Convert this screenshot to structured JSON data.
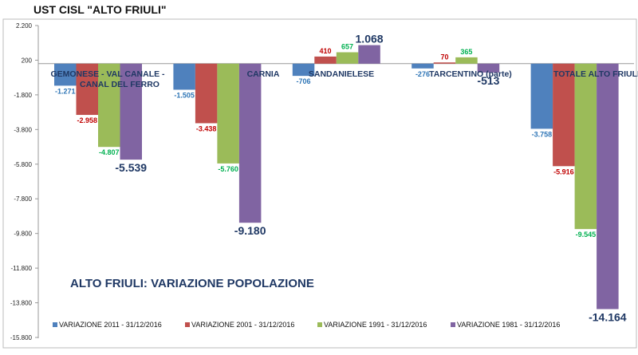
{
  "chart_data": {
    "type": "bar",
    "title": "UST CISL \"ALTO FRIULI\"",
    "subtitle": "ALTO FRIULI: VARIAZIONE POPOLAZIONE",
    "xlabel": "",
    "ylabel": "",
    "ylim": [
      -15800,
      2200
    ],
    "yticks": [
      2200,
      200,
      -1800,
      -3800,
      -5800,
      -7800,
      -9800,
      -11800,
      -13800,
      -15800
    ],
    "grid": false,
    "legend_position": "bottom",
    "categories": [
      "GEMONESE - VAL CANALE - CANAL DEL FERRO",
      "CARNIA",
      "SANDANIELESE",
      "TARCENTINO (parte)",
      "TOTALE ALTO FRIULI"
    ],
    "series": [
      {
        "name": "VARIAZIONE   2011 - 31/12/2016",
        "color": "#4F81BD",
        "label_color": "#2E75B6",
        "values": [
          -1271,
          -1505,
          -706,
          -276,
          -3758
        ]
      },
      {
        "name": "VARIAZIONE   2001 - 31/12/2016",
        "color": "#C0504D",
        "label_color": "#C00000",
        "values": [
          -2958,
          -3438,
          410,
          70,
          -5916
        ]
      },
      {
        "name": "VARIAZIONE  1991 - 31/12/2016",
        "color": "#9BBB59",
        "label_color": "#00B050",
        "values": [
          -4807,
          -5760,
          657,
          365,
          -9545
        ]
      },
      {
        "name": "VARIAZIONE  1981 - 31/12/2016",
        "color": "#8064A2",
        "label_color": "#1F3864",
        "values": [
          -5539,
          -9180,
          1068,
          -513,
          -14164
        ]
      }
    ]
  }
}
